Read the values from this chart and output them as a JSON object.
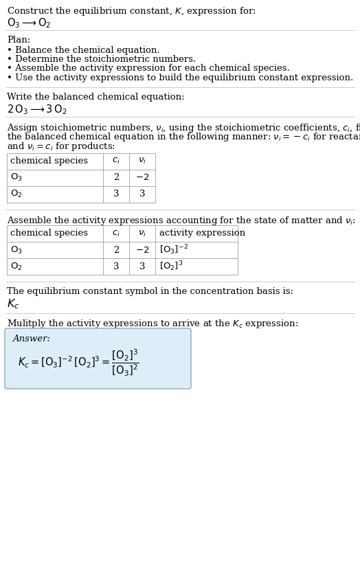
{
  "title_line1": "Construct the equilibrium constant, $K$, expression for:",
  "title_line2": "$\\mathrm{O_3} \\longrightarrow \\mathrm{O_2}$",
  "plan_header": "Plan:",
  "plan_items": [
    "• Balance the chemical equation.",
    "• Determine the stoichiometric numbers.",
    "• Assemble the activity expression for each chemical species.",
    "• Use the activity expressions to build the equilibrium constant expression."
  ],
  "balanced_header": "Write the balanced chemical equation:",
  "balanced_eq": "$2\\,\\mathrm{O_3} \\longrightarrow 3\\,\\mathrm{O_2}$",
  "stoich_lines": [
    "Assign stoichiometric numbers, $\\nu_i$, using the stoichiometric coefficients, $c_i$, from",
    "the balanced chemical equation in the following manner: $\\nu_i = -c_i$ for reactants",
    "and $\\nu_i = c_i$ for products:"
  ],
  "table1_cols": [
    "chemical species",
    "$c_i$",
    "$\\nu_i$"
  ],
  "table1_rows": [
    [
      "$\\mathrm{O_3}$",
      "2",
      "$-2$"
    ],
    [
      "$\\mathrm{O_2}$",
      "3",
      "3"
    ]
  ],
  "activity_header": "Assemble the activity expressions accounting for the state of matter and $\\nu_i$:",
  "table2_cols": [
    "chemical species",
    "$c_i$",
    "$\\nu_i$",
    "activity expression"
  ],
  "table2_rows": [
    [
      "$\\mathrm{O_3}$",
      "2",
      "$-2$",
      "$[\\mathrm{O_3}]^{-2}$"
    ],
    [
      "$\\mathrm{O_2}$",
      "3",
      "3",
      "$[\\mathrm{O_2}]^{3}$"
    ]
  ],
  "kc_header": "The equilibrium constant symbol in the concentration basis is:",
  "kc_symbol": "$K_c$",
  "multiply_header": "Mulitply the activity expressions to arrive at the $K_c$ expression:",
  "answer_label": "Answer:",
  "answer_eq": "$K_c = [\\mathrm{O_3}]^{-2}\\,[\\mathrm{O_2}]^{3} = \\dfrac{[\\mathrm{O_2}]^{3}}{[\\mathrm{O_3}]^{2}}$",
  "bg_color": "#ffffff",
  "answer_box_color": "#deeef8",
  "answer_box_border": "#88aabb",
  "table_line_color": "#aaaaaa",
  "divider_color": "#cccccc",
  "text_color": "#000000",
  "font_size": 9.5
}
